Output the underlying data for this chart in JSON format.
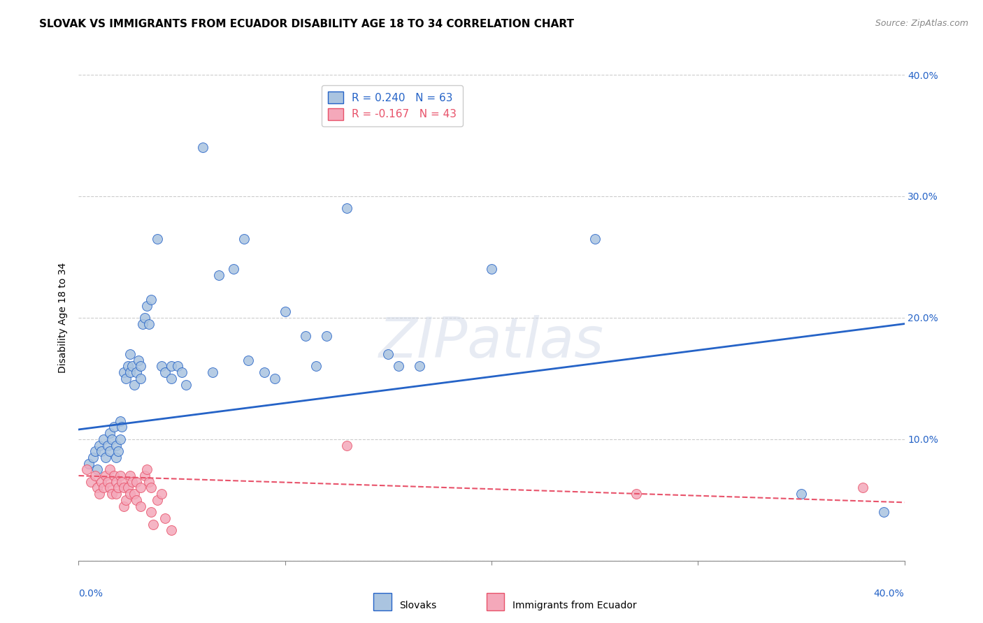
{
  "title": "SLOVAK VS IMMIGRANTS FROM ECUADOR DISABILITY AGE 18 TO 34 CORRELATION CHART",
  "source": "Source: ZipAtlas.com",
  "ylabel": "Disability Age 18 to 34",
  "xlim": [
    0.0,
    0.4
  ],
  "ylim": [
    0.0,
    0.4
  ],
  "xtick_vals": [
    0.0,
    0.1,
    0.2,
    0.3,
    0.4
  ],
  "ytick_vals": [
    0.0,
    0.1,
    0.2,
    0.3,
    0.4
  ],
  "right_ytick_vals": [
    0.1,
    0.2,
    0.3,
    0.4
  ],
  "legend_r1_text": "R = 0.240   N = 63",
  "legend_r2_text": "R = -0.167   N = 43",
  "legend_label1": "Slovaks",
  "legend_label2": "Immigrants from Ecuador",
  "scatter_blue": [
    [
      0.005,
      0.08
    ],
    [
      0.007,
      0.085
    ],
    [
      0.008,
      0.09
    ],
    [
      0.009,
      0.075
    ],
    [
      0.01,
      0.095
    ],
    [
      0.011,
      0.09
    ],
    [
      0.012,
      0.1
    ],
    [
      0.013,
      0.085
    ],
    [
      0.014,
      0.095
    ],
    [
      0.015,
      0.105
    ],
    [
      0.015,
      0.09
    ],
    [
      0.016,
      0.1
    ],
    [
      0.017,
      0.11
    ],
    [
      0.018,
      0.095
    ],
    [
      0.018,
      0.085
    ],
    [
      0.019,
      0.09
    ],
    [
      0.02,
      0.1
    ],
    [
      0.02,
      0.115
    ],
    [
      0.021,
      0.11
    ],
    [
      0.022,
      0.155
    ],
    [
      0.023,
      0.15
    ],
    [
      0.024,
      0.16
    ],
    [
      0.025,
      0.17
    ],
    [
      0.025,
      0.155
    ],
    [
      0.026,
      0.16
    ],
    [
      0.027,
      0.145
    ],
    [
      0.028,
      0.155
    ],
    [
      0.029,
      0.165
    ],
    [
      0.03,
      0.16
    ],
    [
      0.03,
      0.15
    ],
    [
      0.031,
      0.195
    ],
    [
      0.032,
      0.2
    ],
    [
      0.033,
      0.21
    ],
    [
      0.034,
      0.195
    ],
    [
      0.035,
      0.215
    ],
    [
      0.038,
      0.265
    ],
    [
      0.04,
      0.16
    ],
    [
      0.042,
      0.155
    ],
    [
      0.045,
      0.16
    ],
    [
      0.045,
      0.15
    ],
    [
      0.048,
      0.16
    ],
    [
      0.05,
      0.155
    ],
    [
      0.052,
      0.145
    ],
    [
      0.06,
      0.34
    ],
    [
      0.065,
      0.155
    ],
    [
      0.068,
      0.235
    ],
    [
      0.075,
      0.24
    ],
    [
      0.08,
      0.265
    ],
    [
      0.082,
      0.165
    ],
    [
      0.09,
      0.155
    ],
    [
      0.095,
      0.15
    ],
    [
      0.1,
      0.205
    ],
    [
      0.11,
      0.185
    ],
    [
      0.115,
      0.16
    ],
    [
      0.12,
      0.185
    ],
    [
      0.13,
      0.29
    ],
    [
      0.15,
      0.17
    ],
    [
      0.155,
      0.16
    ],
    [
      0.165,
      0.16
    ],
    [
      0.2,
      0.24
    ],
    [
      0.25,
      0.265
    ],
    [
      0.35,
      0.055
    ],
    [
      0.39,
      0.04
    ]
  ],
  "scatter_pink": [
    [
      0.004,
      0.075
    ],
    [
      0.006,
      0.065
    ],
    [
      0.008,
      0.07
    ],
    [
      0.009,
      0.06
    ],
    [
      0.01,
      0.055
    ],
    [
      0.011,
      0.065
    ],
    [
      0.012,
      0.06
    ],
    [
      0.013,
      0.07
    ],
    [
      0.014,
      0.065
    ],
    [
      0.015,
      0.075
    ],
    [
      0.015,
      0.06
    ],
    [
      0.016,
      0.055
    ],
    [
      0.017,
      0.07
    ],
    [
      0.018,
      0.065
    ],
    [
      0.018,
      0.055
    ],
    [
      0.019,
      0.06
    ],
    [
      0.02,
      0.07
    ],
    [
      0.021,
      0.065
    ],
    [
      0.022,
      0.06
    ],
    [
      0.022,
      0.045
    ],
    [
      0.023,
      0.05
    ],
    [
      0.024,
      0.06
    ],
    [
      0.025,
      0.07
    ],
    [
      0.025,
      0.055
    ],
    [
      0.026,
      0.065
    ],
    [
      0.027,
      0.055
    ],
    [
      0.028,
      0.065
    ],
    [
      0.028,
      0.05
    ],
    [
      0.03,
      0.06
    ],
    [
      0.03,
      0.045
    ],
    [
      0.032,
      0.07
    ],
    [
      0.033,
      0.075
    ],
    [
      0.034,
      0.065
    ],
    [
      0.035,
      0.06
    ],
    [
      0.035,
      0.04
    ],
    [
      0.036,
      0.03
    ],
    [
      0.038,
      0.05
    ],
    [
      0.04,
      0.055
    ],
    [
      0.042,
      0.035
    ],
    [
      0.045,
      0.025
    ],
    [
      0.13,
      0.095
    ],
    [
      0.27,
      0.055
    ],
    [
      0.38,
      0.06
    ]
  ],
  "blue_line_x": [
    0.0,
    0.4
  ],
  "blue_line_y": [
    0.108,
    0.195
  ],
  "pink_line_x": [
    0.0,
    0.4
  ],
  "pink_line_y": [
    0.07,
    0.048
  ],
  "scatter_blue_color": "#aac4e0",
  "scatter_pink_color": "#f4a8ba",
  "line_blue_color": "#2563c7",
  "line_pink_color": "#e8526a",
  "watermark": "ZIPatlas",
  "background_color": "#ffffff",
  "grid_color": "#cccccc",
  "title_fontsize": 11,
  "axis_label_fontsize": 10,
  "tick_fontsize": 10
}
